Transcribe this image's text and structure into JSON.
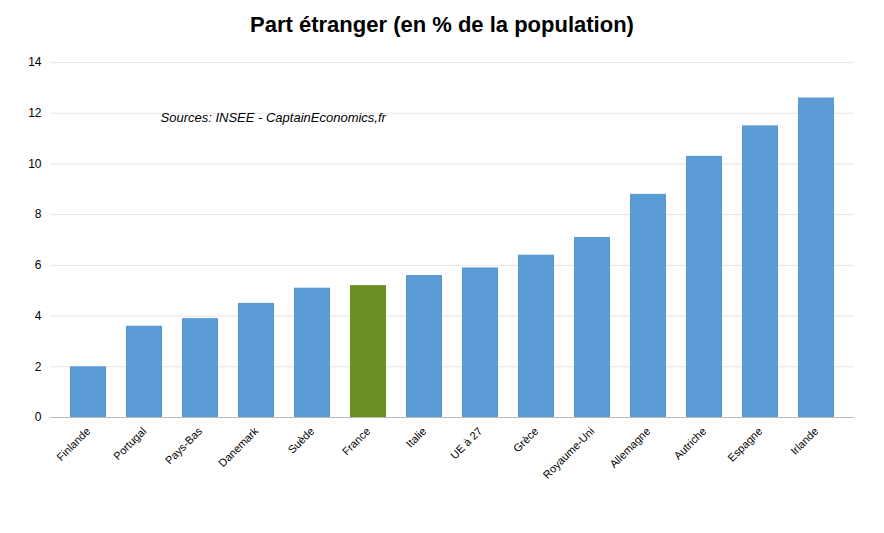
{
  "chart_data": {
    "type": "bar",
    "title": "Part étranger (en % de la population)",
    "annotation": "Sources: INSEE - CaptainEconomics,fr",
    "categories": [
      "Finlande",
      "Portugal",
      "Pays-Bas",
      "Danemark",
      "Suède",
      "France",
      "Italie",
      "UE à 27",
      "Grèce",
      "Royaume-Uni",
      "Allemagne",
      "Autriche",
      "Espagne",
      "Irlande"
    ],
    "values": [
      2.0,
      3.6,
      3.9,
      4.5,
      5.1,
      5.2,
      5.6,
      5.9,
      6.4,
      7.1,
      8.8,
      10.3,
      11.5,
      12.6
    ],
    "colors": [
      "#5B9BD5",
      "#5B9BD5",
      "#5B9BD5",
      "#5B9BD5",
      "#5B9BD5",
      "#6B8E23",
      "#5B9BD5",
      "#5B9BD5",
      "#5B9BD5",
      "#5B9BD5",
      "#5B9BD5",
      "#5B9BD5",
      "#5B9BD5",
      "#5B9BD5"
    ],
    "ylim": [
      0,
      14
    ],
    "yticks": [
      0,
      2,
      4,
      6,
      8,
      10,
      12,
      14
    ],
    "grid": true
  }
}
